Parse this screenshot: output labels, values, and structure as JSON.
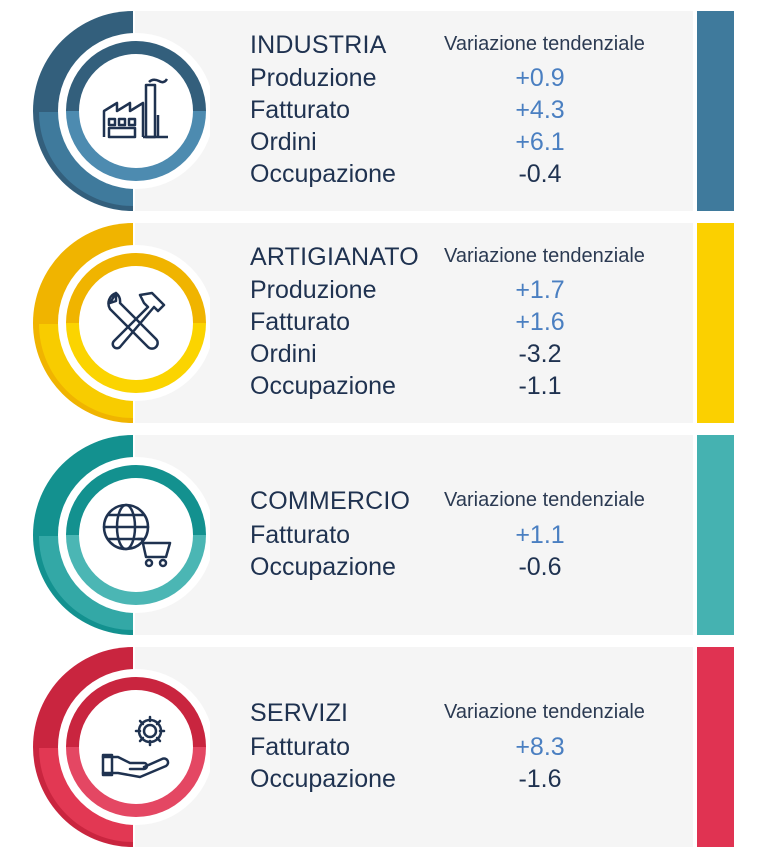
{
  "column_header": "Variazione tendenziale",
  "colors": {
    "industria": "#3f7a9c",
    "artigianato": "#f5c400",
    "commercio": "#19a19f",
    "servizi": "#d9334f",
    "positive": "#4a7fc1",
    "negative": "#1f3250"
  },
  "sectors": [
    {
      "title": "INDUSTRIA",
      "icon": "factory-icon",
      "metrics": [
        {
          "name": "Produzione",
          "value": "+0.9"
        },
        {
          "name": "Fatturato",
          "value": "+4.3"
        },
        {
          "name": "Ordini",
          "value": "+6.1"
        },
        {
          "name": "Occupazione",
          "value": "-0.4"
        }
      ]
    },
    {
      "title": "ARTIGIANATO",
      "icon": "tools-icon",
      "metrics": [
        {
          "name": "Produzione",
          "value": "+1.7"
        },
        {
          "name": "Fatturato",
          "value": "+1.6"
        },
        {
          "name": "Ordini",
          "value": "-3.2"
        },
        {
          "name": "Occupazione",
          "value": "-1.1"
        }
      ]
    },
    {
      "title": "COMMERCIO",
      "icon": "globe-cart-icon",
      "metrics": [
        {
          "name": "Fatturato",
          "value": "+1.1"
        },
        {
          "name": "Occupazione",
          "value": "-0.6"
        }
      ]
    },
    {
      "title": "SERVIZI",
      "icon": "gear-hand-icon",
      "metrics": [
        {
          "name": "Fatturato",
          "value": "+8.3"
        },
        {
          "name": "Occupazione",
          "value": "-1.6"
        }
      ]
    }
  ]
}
